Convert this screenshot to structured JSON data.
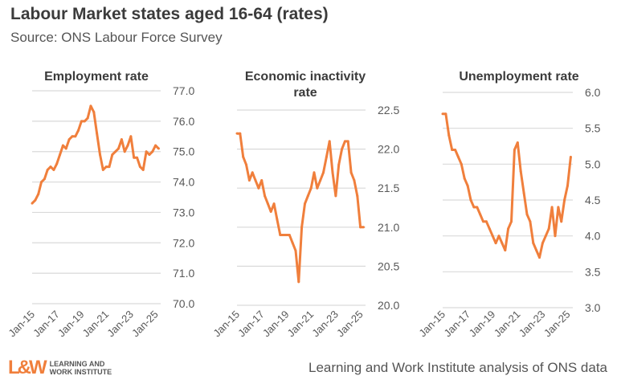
{
  "title": "Labour Market states aged 16-64 (rates)",
  "subtitle": "Source: ONS Labour Force Survey",
  "source_note": "Learning and Work Institute analysis of ONS data",
  "logo": {
    "mark": "L&W",
    "line1": "LEARNING AND",
    "line2": "WORK INSTITUTE"
  },
  "colors": {
    "line": "#F07F3C",
    "grid": "#D9D9D9",
    "text": "#595959"
  },
  "chart_data": [
    {
      "type": "line",
      "title": "Employment rate",
      "x_start": "Jan-15",
      "x_step": "quarter",
      "xticks": [
        "Jan-15",
        "Jan-17",
        "Jan-19",
        "Jan-21",
        "Jan-23",
        "Jan-25"
      ],
      "yticks": [
        "70.0",
        "71.0",
        "72.0",
        "73.0",
        "74.0",
        "75.0",
        "76.0",
        "77.0"
      ],
      "ylim": [
        70,
        77
      ],
      "grid": true,
      "values": [
        73.3,
        73.4,
        73.6,
        74.0,
        74.1,
        74.4,
        74.5,
        74.4,
        74.6,
        74.9,
        75.2,
        75.1,
        75.4,
        75.5,
        75.5,
        75.7,
        76.0,
        76.0,
        76.1,
        76.5,
        76.3,
        75.6,
        74.9,
        74.4,
        74.5,
        74.5,
        74.9,
        75.0,
        75.1,
        75.4,
        75.0,
        75.2,
        75.5,
        74.8,
        74.8,
        74.5,
        74.4,
        75.0,
        74.9,
        75.0,
        75.2,
        75.1
      ]
    },
    {
      "type": "line",
      "title": "Economic inactivity rate",
      "x_start": "Jan-15",
      "x_step": "quarter",
      "xticks": [
        "Jan-15",
        "Jan-17",
        "Jan-19",
        "Jan-21",
        "Jan-23",
        "Jan-25"
      ],
      "yticks": [
        "20.0",
        "20.5",
        "21.0",
        "21.5",
        "22.0",
        "22.5"
      ],
      "ylim": [
        20,
        22.5
      ],
      "grid": true,
      "values": [
        22.2,
        22.2,
        21.9,
        21.8,
        21.6,
        21.7,
        21.6,
        21.5,
        21.6,
        21.4,
        21.3,
        21.2,
        21.3,
        21.1,
        20.9,
        20.9,
        20.9,
        20.9,
        20.8,
        20.7,
        20.3,
        21.0,
        21.3,
        21.4,
        21.5,
        21.7,
        21.5,
        21.6,
        21.7,
        21.9,
        22.1,
        21.7,
        21.4,
        21.8,
        22.0,
        22.1,
        22.1,
        21.7,
        21.6,
        21.4,
        21.0,
        21.0
      ]
    },
    {
      "type": "line",
      "title": "Unemployment rate",
      "x_start": "Jan-15",
      "x_step": "quarter",
      "xticks": [
        "Jan-15",
        "Jan-17",
        "Jan-19",
        "Jan-21",
        "Jan-23",
        "Jan-25"
      ],
      "yticks": [
        "3.0",
        "3.5",
        "4.0",
        "4.5",
        "5.0",
        "5.5",
        "6.0"
      ],
      "ylim": [
        3,
        6
      ],
      "grid": true,
      "values": [
        5.7,
        5.7,
        5.4,
        5.2,
        5.2,
        5.1,
        5.0,
        4.8,
        4.7,
        4.5,
        4.4,
        4.4,
        4.3,
        4.2,
        4.2,
        4.1,
        4.0,
        3.9,
        4.0,
        3.9,
        3.8,
        4.1,
        4.2,
        5.2,
        5.3,
        4.9,
        4.6,
        4.3,
        4.2,
        3.9,
        3.8,
        3.7,
        3.9,
        4.0,
        4.1,
        4.4,
        4.0,
        4.4,
        4.2,
        4.5,
        4.7,
        5.1
      ]
    }
  ]
}
